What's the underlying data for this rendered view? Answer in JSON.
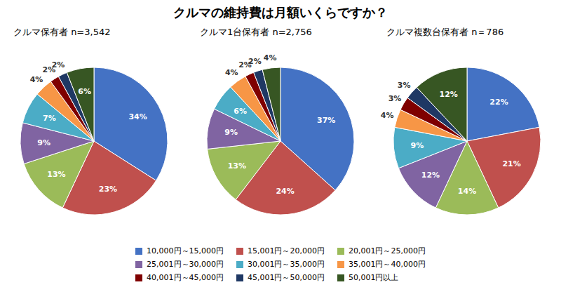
{
  "title": "クルマの維持費は月額いくらですか？",
  "chart_data": [
    {
      "type": "pie",
      "subtitle": "クルマ保有者 n=3,542",
      "categories": [
        "10,000円～15,000円",
        "15,001円～20,000円",
        "20,001円～25,000円",
        "25,001円～30,000円",
        "30,001円～35,000円",
        "35,001円～40,000円",
        "40,001円～45,000円",
        "45,001円～50,000円",
        "50,001円以上"
      ],
      "values": [
        34,
        23,
        13,
        9,
        7,
        4,
        2,
        2,
        6
      ],
      "value_labels": [
        "34%",
        "23%",
        "13%",
        "9%",
        "7%",
        "4%",
        "2%",
        "2%",
        "6%"
      ],
      "colors": [
        "#4472C4",
        "#C0504D",
        "#9BBB59",
        "#8064A2",
        "#4BACC6",
        "#F79646",
        "#7F0000",
        "#1F3864",
        "#375623"
      ],
      "data_labels": true,
      "legend": "bottom"
    },
    {
      "type": "pie",
      "subtitle": "クルマ1台保有者 n=2,756",
      "categories": [
        "10,000円～15,000円",
        "15,001円～20,000円",
        "20,001円～25,000円",
        "25,001円～30,000円",
        "30,001円～35,000円",
        "35,001円～40,000円",
        "40,001円～45,000円",
        "45,001円～50,000円",
        "50,001円以上"
      ],
      "values": [
        37,
        24,
        13,
        9,
        6,
        4,
        2,
        2,
        4
      ],
      "value_labels": [
        "37%",
        "24%",
        "13%",
        "9%",
        "6%",
        "4%",
        "2%",
        "2%",
        "4%"
      ],
      "colors": [
        "#4472C4",
        "#C0504D",
        "#9BBB59",
        "#8064A2",
        "#4BACC6",
        "#F79646",
        "#7F0000",
        "#1F3864",
        "#375623"
      ],
      "data_labels": true,
      "legend": "bottom"
    },
    {
      "type": "pie",
      "subtitle": "クルマ複数台保有者 n＝786",
      "categories": [
        "10,000円～15,000円",
        "15,001円～20,000円",
        "20,001円～25,000円",
        "25,001円～30,000円",
        "30,001円～35,000円",
        "35,001円～40,000円",
        "40,001円～45,000円",
        "45,001円～50,000円",
        "50,001円以上"
      ],
      "values": [
        22,
        21,
        14,
        12,
        9,
        4,
        3,
        3,
        12
      ],
      "value_labels": [
        "22%",
        "21%",
        "14%",
        "12%",
        "9%",
        "4%",
        "3%",
        "3%",
        "12%"
      ],
      "colors": [
        "#4472C4",
        "#C0504D",
        "#9BBB59",
        "#8064A2",
        "#4BACC6",
        "#F79646",
        "#7F0000",
        "#1F3864",
        "#375623"
      ],
      "data_labels": true,
      "legend": "bottom"
    }
  ]
}
